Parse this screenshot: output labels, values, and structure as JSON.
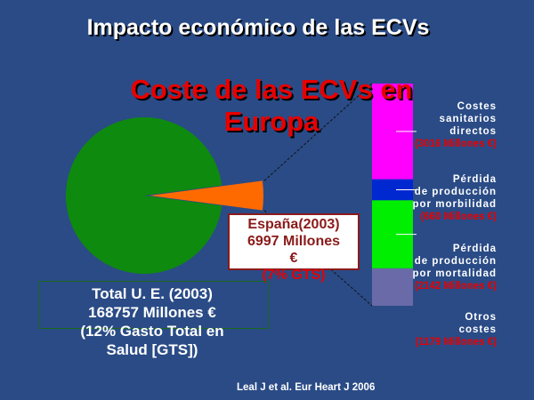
{
  "slide": {
    "title": "Impacto económico de las ECVs",
    "subtitle": "Coste de las ECVs en Europa",
    "total_box": {
      "line1": "Total U. E. (2003)",
      "line2": "168757 Millones €",
      "line3": "(12% Gasto Total en",
      "line4": "Salud [GTS])"
    },
    "spain_box": {
      "line1": "España(2003)",
      "line2": "6997 Millones",
      "line3": "€",
      "line4": "(7% GTS)"
    },
    "citation": "Leal J et al. Eur Heart J 2006"
  },
  "colors": {
    "background": "#2a4b86",
    "pie_main": "#0e8a0e",
    "pie_spain": "#ff6a00",
    "costes_sanitarios": "#ff00ff",
    "perdida_morbilidad": "#0028d0",
    "perdida_mortalidad": "#00ee00",
    "otros_costes": "#6a6aa8",
    "value_text": "#e80000"
  },
  "chart_data": [
    {
      "type": "pie",
      "slices": [
        {
          "label": "Total U. E.",
          "value": 168757
        },
        {
          "label": "España",
          "value": 6997
        }
      ]
    },
    {
      "type": "bar",
      "stacked": true,
      "unit": "Millones €",
      "series": [
        {
          "label_lines": [
            "Costes",
            "sanitarios",
            "directos"
          ],
          "value_text": "(3016 Millones €)",
          "value": 3016
        },
        {
          "label_lines": [
            "Pérdida",
            "de producción",
            "por morbilidad"
          ],
          "value_text": "(660 Millones €)",
          "value": 660
        },
        {
          "label_lines": [
            "Pérdida",
            "de producción",
            "por mortalidad"
          ],
          "value_text": "(2142 Millones €)",
          "value": 2142
        },
        {
          "label_lines": [
            "Otros",
            "costes"
          ],
          "value_text": "(1179 Millones €)",
          "value": 1179
        }
      ]
    }
  ]
}
